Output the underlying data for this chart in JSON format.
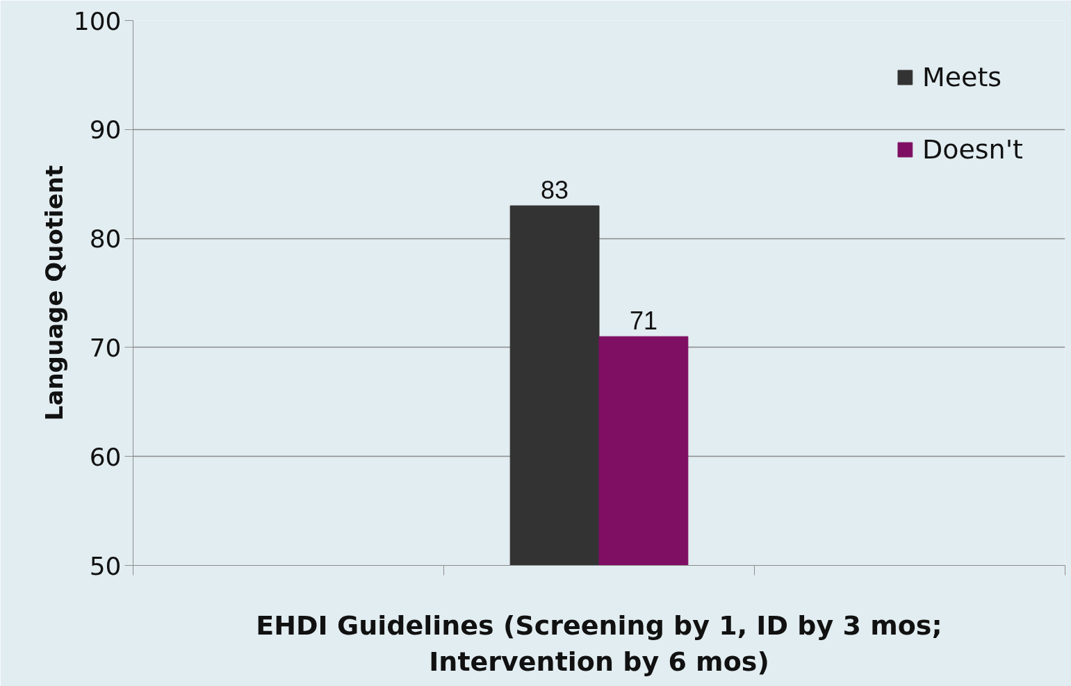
{
  "chart_data": {
    "type": "bar",
    "xlabel": "EHDI Guidelines (Screening by 1, ID by 3 mos;\nIntervention by 6 mos)",
    "ylabel": "Language Quotient",
    "categories": [
      null,
      null,
      null
    ],
    "series": [
      {
        "name": "Meets",
        "color": "#333333",
        "values": [
          null,
          83,
          null
        ]
      },
      {
        "name": "Doesn't",
        "color": "#7f0f62",
        "values": [
          null,
          71,
          null
        ]
      }
    ],
    "ylim": [
      50,
      100
    ],
    "yticks": [
      50,
      60,
      70,
      80,
      90,
      100
    ],
    "grid": "y",
    "legend": "top right",
    "data_labels": true
  }
}
